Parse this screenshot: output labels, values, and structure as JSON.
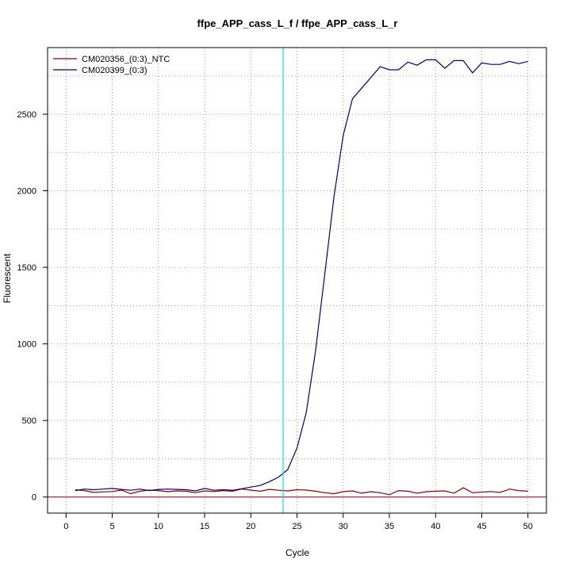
{
  "chart_data": {
    "type": "line",
    "title": "ffpe_APP_cass_L_f / ffpe_APP_cass_L_r",
    "xlabel": "Cycle",
    "ylabel": "Fluorescent",
    "xlim": [
      -2,
      52
    ],
    "ylim": [
      -105,
      2935
    ],
    "x_ticks": [
      0,
      5,
      10,
      15,
      20,
      25,
      30,
      35,
      40,
      45,
      50
    ],
    "y_ticks": [
      0,
      500,
      1000,
      1500,
      2000,
      2500
    ],
    "grid": true,
    "grid_style": "dotted",
    "grid_x": [
      0,
      5,
      10,
      15,
      20,
      25,
      30,
      35,
      40,
      45,
      50
    ],
    "grid_y": [
      0,
      250,
      500,
      750,
      1000,
      1250,
      1500,
      1750,
      2000,
      2250,
      2500,
      2750
    ],
    "legend_position": "top-left",
    "threshold_line": {
      "x": 23.5,
      "color": "#00e5e5"
    },
    "baseline": {
      "y": 0,
      "color": "#8b0000"
    },
    "x": [
      1,
      2,
      3,
      4,
      5,
      6,
      7,
      8,
      9,
      10,
      11,
      12,
      13,
      14,
      15,
      16,
      17,
      18,
      19,
      20,
      21,
      22,
      23,
      24,
      25,
      26,
      27,
      28,
      29,
      30,
      31,
      32,
      33,
      34,
      35,
      36,
      37,
      38,
      39,
      40,
      41,
      42,
      43,
      44,
      45,
      46,
      47,
      48,
      49,
      50
    ],
    "series": [
      {
        "name": "CM020356_(0:3)_NTC",
        "color": "#8b0000",
        "values": [
          48,
          42,
          30,
          34,
          36,
          45,
          22,
          38,
          45,
          42,
          35,
          40,
          38,
          28,
          40,
          36,
          42,
          38,
          52,
          45,
          38,
          50,
          44,
          40,
          48,
          45,
          38,
          28,
          22,
          35,
          40,
          25,
          35,
          28,
          15,
          42,
          38,
          25,
          35,
          38,
          40,
          25,
          60,
          28,
          32,
          36,
          30,
          52,
          42,
          38
        ]
      },
      {
        "name": "CM020399_(0:3)",
        "color": "#000080",
        "values": [
          42,
          52,
          48,
          52,
          56,
          50,
          44,
          52,
          42,
          50,
          52,
          50,
          48,
          40,
          56,
          44,
          48,
          44,
          54,
          65,
          75,
          100,
          130,
          180,
          320,
          550,
          950,
          1450,
          1960,
          2360,
          2600,
          2670,
          2740,
          2810,
          2790,
          2790,
          2840,
          2820,
          2855,
          2855,
          2800,
          2850,
          2850,
          2770,
          2835,
          2825,
          2825,
          2845,
          2830,
          2845
        ]
      }
    ]
  }
}
